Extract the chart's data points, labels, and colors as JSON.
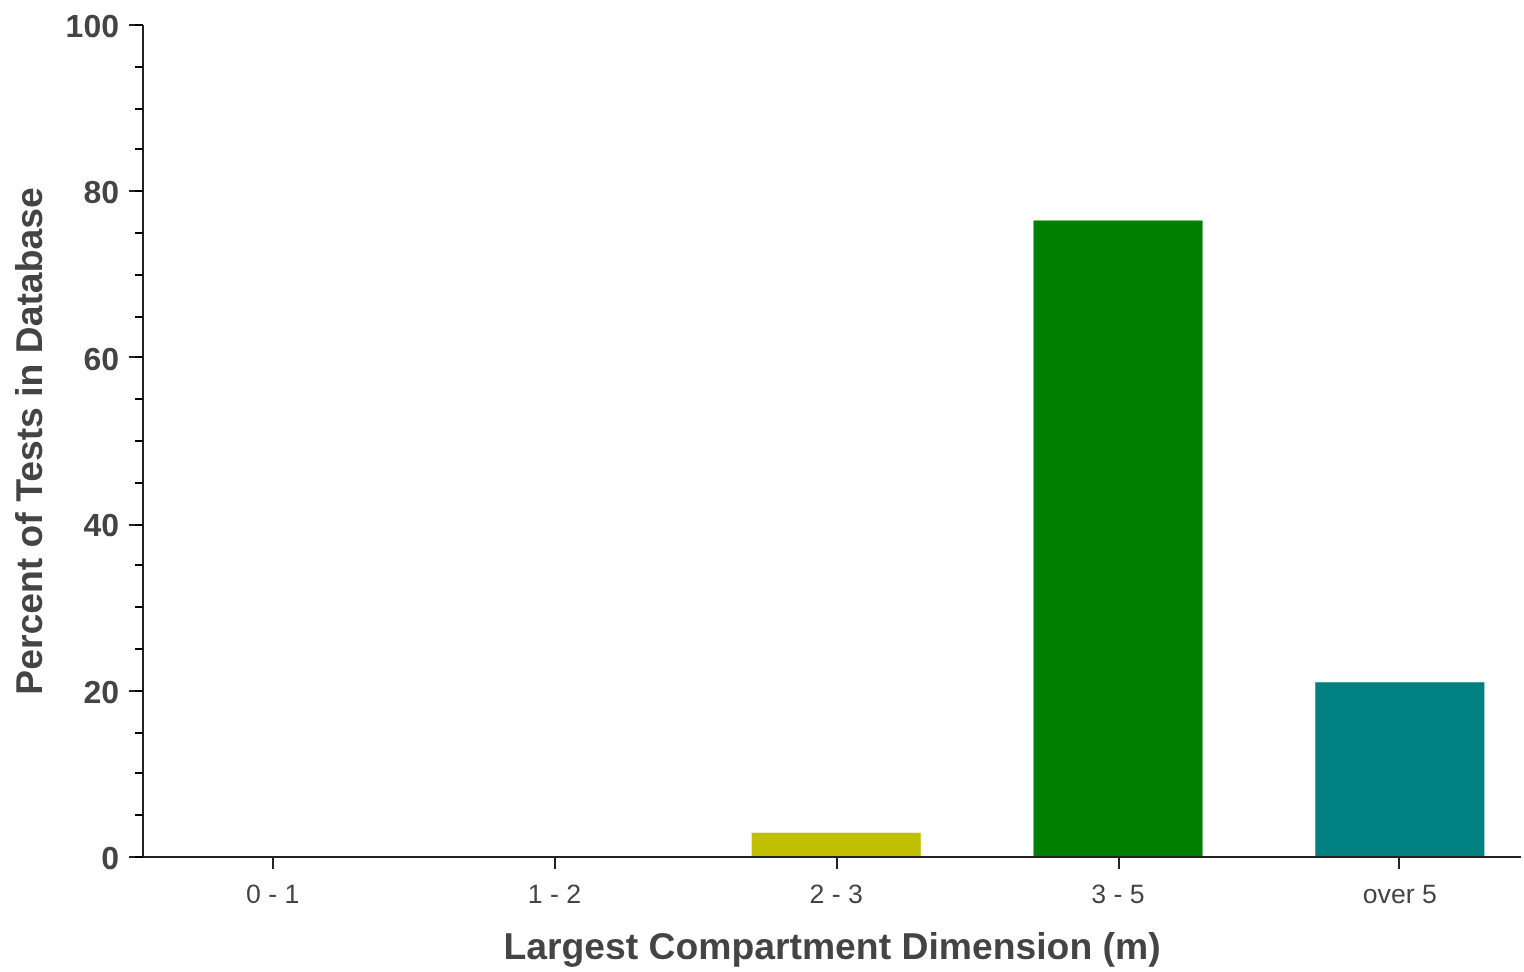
{
  "chart_data": {
    "type": "bar",
    "xlabel": "Largest Compartment Dimension (m)",
    "ylabel": "Percent of Tests in Database",
    "categories": [
      "0 - 1",
      "1 - 2",
      "2 - 3",
      "3 - 5",
      "over 5"
    ],
    "values": [
      0,
      0,
      2.9,
      76.5,
      21.0
    ],
    "colors": [
      "#c0c000",
      "#c0c000",
      "#c0c000",
      "#008000",
      "#008080"
    ],
    "ylim": [
      0,
      100
    ],
    "yticks": [
      0,
      20,
      40,
      60,
      80,
      100
    ],
    "grid": false
  }
}
